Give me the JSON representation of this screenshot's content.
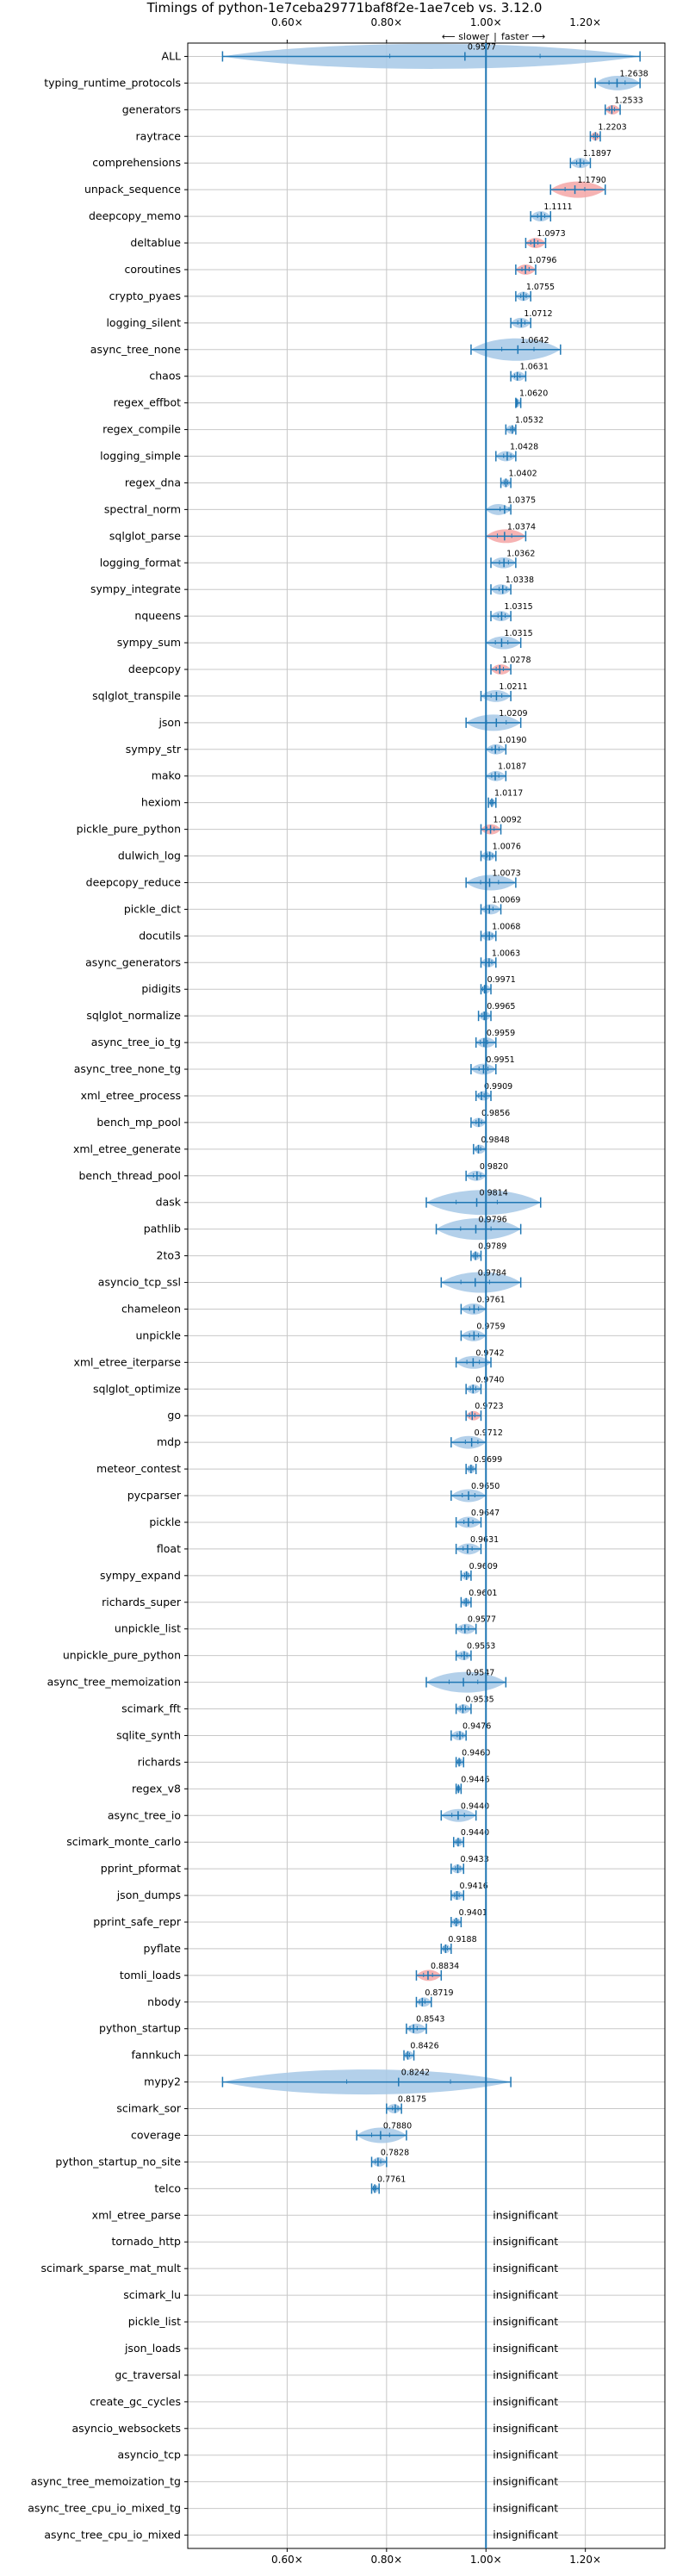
{
  "chart_data": {
    "type": "violin",
    "title": "Timings of python-1e7ceba29771baf8f2e-1ae7ceb vs. 3.12.0",
    "direction_labels": {
      "slower": "⟵ slower",
      "faster": "faster ⟶",
      "separator": "|"
    },
    "xlim": [
      0.4,
      1.36
    ],
    "x_ticks": [
      0.6,
      0.8,
      1.0,
      1.2
    ],
    "x_tick_labels": [
      "0.60×",
      "0.80×",
      "1.00×",
      "1.20×"
    ],
    "reference_x": 1.0,
    "grid": true,
    "insignificant_label": "insignificant",
    "colors": {
      "violin": "#a6c8e6",
      "violin_highlight": "#f4a6a6",
      "stroke": "#1f77b4"
    },
    "benchmarks": [
      {
        "name": "ALL",
        "value": 0.9577,
        "min": 0.47,
        "max": 1.31,
        "label": "0.9577",
        "color": "blue"
      },
      {
        "name": "typing_runtime_protocols",
        "value": 1.2638,
        "min": 1.22,
        "max": 1.31,
        "label": "1.2638",
        "color": "blue"
      },
      {
        "name": "generators",
        "value": 1.2533,
        "min": 1.24,
        "max": 1.27,
        "label": "1.2533",
        "color": "red"
      },
      {
        "name": "raytrace",
        "value": 1.2203,
        "min": 1.21,
        "max": 1.23,
        "label": "1.2203",
        "color": "red"
      },
      {
        "name": "comprehensions",
        "value": 1.1897,
        "min": 1.17,
        "max": 1.21,
        "label": "1.1897",
        "color": "blue"
      },
      {
        "name": "unpack_sequence",
        "value": 1.179,
        "min": 1.13,
        "max": 1.24,
        "label": "1.1790",
        "color": "red"
      },
      {
        "name": "deepcopy_memo",
        "value": 1.1111,
        "min": 1.09,
        "max": 1.13,
        "label": "1.1111",
        "color": "blue"
      },
      {
        "name": "deltablue",
        "value": 1.0973,
        "min": 1.08,
        "max": 1.12,
        "label": "1.0973",
        "color": "red"
      },
      {
        "name": "coroutines",
        "value": 1.0796,
        "min": 1.06,
        "max": 1.1,
        "label": "1.0796",
        "color": "red"
      },
      {
        "name": "crypto_pyaes",
        "value": 1.0755,
        "min": 1.06,
        "max": 1.09,
        "label": "1.0755",
        "color": "blue"
      },
      {
        "name": "logging_silent",
        "value": 1.0712,
        "min": 1.05,
        "max": 1.09,
        "label": "1.0712",
        "color": "blue"
      },
      {
        "name": "async_tree_none",
        "value": 1.0642,
        "min": 0.97,
        "max": 1.15,
        "label": "1.0642",
        "color": "blue"
      },
      {
        "name": "chaos",
        "value": 1.0631,
        "min": 1.05,
        "max": 1.08,
        "label": "1.0631",
        "color": "blue"
      },
      {
        "name": "regex_effbot",
        "value": 1.062,
        "min": 1.06,
        "max": 1.07,
        "label": "1.0620",
        "color": "blue"
      },
      {
        "name": "regex_compile",
        "value": 1.0532,
        "min": 1.04,
        "max": 1.06,
        "label": "1.0532",
        "color": "blue"
      },
      {
        "name": "logging_simple",
        "value": 1.0428,
        "min": 1.02,
        "max": 1.06,
        "label": "1.0428",
        "color": "blue"
      },
      {
        "name": "regex_dna",
        "value": 1.0402,
        "min": 1.03,
        "max": 1.05,
        "label": "1.0402",
        "color": "blue"
      },
      {
        "name": "spectral_norm",
        "value": 1.0375,
        "min": 1.0,
        "max": 1.05,
        "label": "1.0375",
        "color": "blue"
      },
      {
        "name": "sqlglot_parse",
        "value": 1.0374,
        "min": 1.0,
        "max": 1.08,
        "label": "1.0374",
        "color": "red"
      },
      {
        "name": "logging_format",
        "value": 1.0362,
        "min": 1.01,
        "max": 1.06,
        "label": "1.0362",
        "color": "blue"
      },
      {
        "name": "sympy_integrate",
        "value": 1.0338,
        "min": 1.01,
        "max": 1.05,
        "label": "1.0338",
        "color": "blue"
      },
      {
        "name": "nqueens",
        "value": 1.0315,
        "min": 1.01,
        "max": 1.05,
        "label": "1.0315",
        "color": "blue"
      },
      {
        "name": "sympy_sum",
        "value": 1.0315,
        "min": 1.0,
        "max": 1.07,
        "label": "1.0315",
        "color": "blue"
      },
      {
        "name": "deepcopy",
        "value": 1.0278,
        "min": 1.01,
        "max": 1.05,
        "label": "1.0278",
        "color": "red"
      },
      {
        "name": "sqlglot_transpile",
        "value": 1.0211,
        "min": 0.99,
        "max": 1.05,
        "label": "1.0211",
        "color": "blue"
      },
      {
        "name": "json",
        "value": 1.0209,
        "min": 0.96,
        "max": 1.07,
        "label": "1.0209",
        "color": "blue"
      },
      {
        "name": "sympy_str",
        "value": 1.019,
        "min": 1.0,
        "max": 1.04,
        "label": "1.0190",
        "color": "blue"
      },
      {
        "name": "mako",
        "value": 1.0187,
        "min": 1.0,
        "max": 1.04,
        "label": "1.0187",
        "color": "blue"
      },
      {
        "name": "hexiom",
        "value": 1.0117,
        "min": 1.005,
        "max": 1.02,
        "label": "1.0117",
        "color": "blue"
      },
      {
        "name": "pickle_pure_python",
        "value": 1.0092,
        "min": 0.99,
        "max": 1.03,
        "label": "1.0092",
        "color": "red"
      },
      {
        "name": "dulwich_log",
        "value": 1.0076,
        "min": 0.99,
        "max": 1.02,
        "label": "1.0076",
        "color": "blue"
      },
      {
        "name": "deepcopy_reduce",
        "value": 1.0073,
        "min": 0.96,
        "max": 1.06,
        "label": "1.0073",
        "color": "blue"
      },
      {
        "name": "pickle_dict",
        "value": 1.0069,
        "min": 0.99,
        "max": 1.03,
        "label": "1.0069",
        "color": "blue"
      },
      {
        "name": "docutils",
        "value": 1.0068,
        "min": 0.99,
        "max": 1.02,
        "label": "1.0068",
        "color": "blue"
      },
      {
        "name": "async_generators",
        "value": 1.0063,
        "min": 0.99,
        "max": 1.02,
        "label": "1.0063",
        "color": "blue"
      },
      {
        "name": "pidigits",
        "value": 0.9971,
        "min": 0.99,
        "max": 1.01,
        "label": "0.9971",
        "color": "blue"
      },
      {
        "name": "sqlglot_normalize",
        "value": 0.9965,
        "min": 0.985,
        "max": 1.01,
        "label": "0.9965",
        "color": "blue"
      },
      {
        "name": "async_tree_io_tg",
        "value": 0.9959,
        "min": 0.98,
        "max": 1.02,
        "label": "0.9959",
        "color": "blue"
      },
      {
        "name": "async_tree_none_tg",
        "value": 0.9951,
        "min": 0.97,
        "max": 1.02,
        "label": "0.9951",
        "color": "blue"
      },
      {
        "name": "xml_etree_process",
        "value": 0.9909,
        "min": 0.98,
        "max": 1.01,
        "label": "0.9909",
        "color": "blue"
      },
      {
        "name": "bench_mp_pool",
        "value": 0.9856,
        "min": 0.97,
        "max": 1.0,
        "label": "0.9856",
        "color": "blue"
      },
      {
        "name": "xml_etree_generate",
        "value": 0.9848,
        "min": 0.975,
        "max": 1.0,
        "label": "0.9848",
        "color": "blue"
      },
      {
        "name": "bench_thread_pool",
        "value": 0.982,
        "min": 0.96,
        "max": 1.0,
        "label": "0.9820",
        "color": "blue"
      },
      {
        "name": "dask",
        "value": 0.9814,
        "min": 0.88,
        "max": 1.11,
        "label": "0.9814",
        "color": "blue"
      },
      {
        "name": "pathlib",
        "value": 0.9796,
        "min": 0.9,
        "max": 1.07,
        "label": "0.9796",
        "color": "blue"
      },
      {
        "name": "2to3",
        "value": 0.9789,
        "min": 0.97,
        "max": 0.99,
        "label": "0.9789",
        "color": "blue"
      },
      {
        "name": "asyncio_tcp_ssl",
        "value": 0.9784,
        "min": 0.91,
        "max": 1.07,
        "label": "0.9784",
        "color": "blue"
      },
      {
        "name": "chameleon",
        "value": 0.9761,
        "min": 0.95,
        "max": 1.0,
        "label": "0.9761",
        "color": "blue"
      },
      {
        "name": "unpickle",
        "value": 0.9759,
        "min": 0.95,
        "max": 1.0,
        "label": "0.9759",
        "color": "blue"
      },
      {
        "name": "xml_etree_iterparse",
        "value": 0.9742,
        "min": 0.94,
        "max": 1.01,
        "label": "0.9742",
        "color": "blue"
      },
      {
        "name": "sqlglot_optimize",
        "value": 0.974,
        "min": 0.96,
        "max": 0.99,
        "label": "0.9740",
        "color": "blue"
      },
      {
        "name": "go",
        "value": 0.9723,
        "min": 0.96,
        "max": 0.99,
        "label": "0.9723",
        "color": "red"
      },
      {
        "name": "mdp",
        "value": 0.9712,
        "min": 0.93,
        "max": 1.0,
        "label": "0.9712",
        "color": "blue"
      },
      {
        "name": "meteor_contest",
        "value": 0.9699,
        "min": 0.96,
        "max": 0.98,
        "label": "0.9699",
        "color": "blue"
      },
      {
        "name": "pycparser",
        "value": 0.965,
        "min": 0.93,
        "max": 1.0,
        "label": "0.9650",
        "color": "blue"
      },
      {
        "name": "pickle",
        "value": 0.9647,
        "min": 0.94,
        "max": 0.99,
        "label": "0.9647",
        "color": "blue"
      },
      {
        "name": "float",
        "value": 0.9631,
        "min": 0.94,
        "max": 0.99,
        "label": "0.9631",
        "color": "blue"
      },
      {
        "name": "sympy_expand",
        "value": 0.9609,
        "min": 0.95,
        "max": 0.97,
        "label": "0.9609",
        "color": "blue"
      },
      {
        "name": "richards_super",
        "value": 0.9601,
        "min": 0.95,
        "max": 0.97,
        "label": "0.9601",
        "color": "blue"
      },
      {
        "name": "unpickle_list",
        "value": 0.9577,
        "min": 0.94,
        "max": 0.98,
        "label": "0.9577",
        "color": "blue"
      },
      {
        "name": "unpickle_pure_python",
        "value": 0.9563,
        "min": 0.94,
        "max": 0.97,
        "label": "0.9563",
        "color": "blue"
      },
      {
        "name": "async_tree_memoization",
        "value": 0.9547,
        "min": 0.88,
        "max": 1.04,
        "label": "0.9547",
        "color": "blue"
      },
      {
        "name": "scimark_fft",
        "value": 0.9535,
        "min": 0.94,
        "max": 0.97,
        "label": "0.9535",
        "color": "blue"
      },
      {
        "name": "sqlite_synth",
        "value": 0.9476,
        "min": 0.93,
        "max": 0.96,
        "label": "0.9476",
        "color": "blue"
      },
      {
        "name": "richards",
        "value": 0.946,
        "min": 0.94,
        "max": 0.955,
        "label": "0.9460",
        "color": "blue"
      },
      {
        "name": "regex_v8",
        "value": 0.9446,
        "min": 0.94,
        "max": 0.95,
        "label": "0.9446",
        "color": "blue"
      },
      {
        "name": "async_tree_io",
        "value": 0.944,
        "min": 0.91,
        "max": 0.98,
        "label": "0.9440",
        "color": "blue"
      },
      {
        "name": "scimark_monte_carlo",
        "value": 0.944,
        "min": 0.935,
        "max": 0.955,
        "label": "0.9440",
        "color": "blue"
      },
      {
        "name": "pprint_pformat",
        "value": 0.9433,
        "min": 0.93,
        "max": 0.955,
        "label": "0.9433",
        "color": "blue"
      },
      {
        "name": "json_dumps",
        "value": 0.9416,
        "min": 0.93,
        "max": 0.955,
        "label": "0.9416",
        "color": "blue"
      },
      {
        "name": "pprint_safe_repr",
        "value": 0.9401,
        "min": 0.93,
        "max": 0.95,
        "label": "0.9401",
        "color": "blue"
      },
      {
        "name": "pyflate",
        "value": 0.9188,
        "min": 0.91,
        "max": 0.93,
        "label": "0.9188",
        "color": "blue"
      },
      {
        "name": "tomli_loads",
        "value": 0.8834,
        "min": 0.86,
        "max": 0.91,
        "label": "0.8834",
        "color": "red"
      },
      {
        "name": "nbody",
        "value": 0.8719,
        "min": 0.86,
        "max": 0.89,
        "label": "0.8719",
        "color": "blue"
      },
      {
        "name": "python_startup",
        "value": 0.8543,
        "min": 0.84,
        "max": 0.88,
        "label": "0.8543",
        "color": "blue"
      },
      {
        "name": "fannkuch",
        "value": 0.8426,
        "min": 0.835,
        "max": 0.855,
        "label": "0.8426",
        "color": "blue"
      },
      {
        "name": "mypy2",
        "value": 0.8242,
        "min": 0.47,
        "max": 1.05,
        "label": "0.8242",
        "color": "blue"
      },
      {
        "name": "scimark_sor",
        "value": 0.8175,
        "min": 0.8,
        "max": 0.83,
        "label": "0.8175",
        "color": "blue"
      },
      {
        "name": "coverage",
        "value": 0.788,
        "min": 0.74,
        "max": 0.84,
        "label": "0.7880",
        "color": "blue"
      },
      {
        "name": "python_startup_no_site",
        "value": 0.7828,
        "min": 0.77,
        "max": 0.8,
        "label": "0.7828",
        "color": "blue"
      },
      {
        "name": "telco",
        "value": 0.7761,
        "min": 0.77,
        "max": 0.785,
        "label": "0.7761",
        "color": "blue"
      },
      {
        "name": "xml_etree_parse",
        "insignificant": true
      },
      {
        "name": "tornado_http",
        "insignificant": true
      },
      {
        "name": "scimark_sparse_mat_mult",
        "insignificant": true
      },
      {
        "name": "scimark_lu",
        "insignificant": true
      },
      {
        "name": "pickle_list",
        "insignificant": true
      },
      {
        "name": "json_loads",
        "insignificant": true
      },
      {
        "name": "gc_traversal",
        "insignificant": true
      },
      {
        "name": "create_gc_cycles",
        "insignificant": true
      },
      {
        "name": "asyncio_websockets",
        "insignificant": true
      },
      {
        "name": "asyncio_tcp",
        "insignificant": true
      },
      {
        "name": "async_tree_memoization_tg",
        "insignificant": true
      },
      {
        "name": "async_tree_cpu_io_mixed_tg",
        "insignificant": true
      },
      {
        "name": "async_tree_cpu_io_mixed",
        "insignificant": true
      }
    ]
  }
}
